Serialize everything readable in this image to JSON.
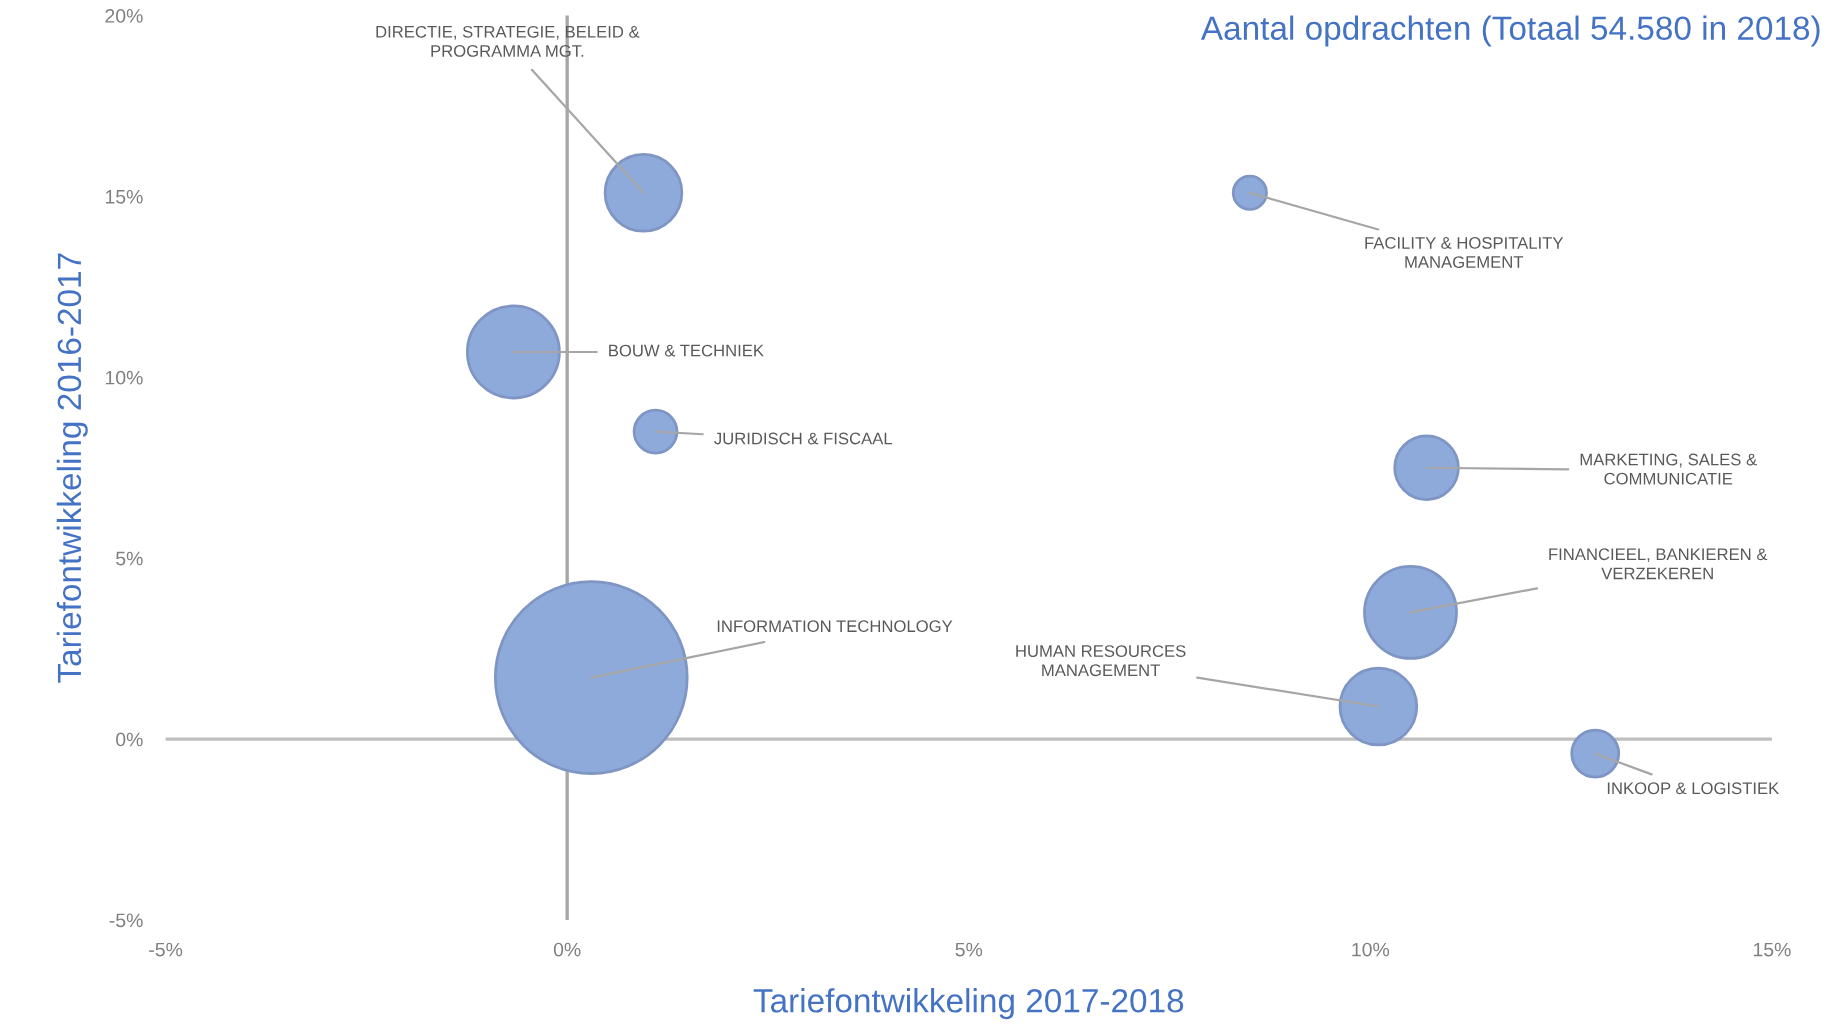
{
  "chart_data": {
    "type": "bubble",
    "title": "Aantal opdrachten (Totaal 54.580 in 2018)",
    "xlabel": "Tariefontwikkeling 2017-2018",
    "ylabel": "Tariefontwikkeling 2016-2017",
    "series": [
      {
        "color": "#8eaadb",
        "x": [
          0.95,
          8.5,
          -0.67,
          1.1,
          10.7,
          0.3,
          10.5,
          10.1,
          12.8
        ],
        "values": [
          15.1,
          15.1,
          10.7,
          8.5,
          7.5,
          1.7,
          3.5,
          0.9,
          -0.4
        ],
        "sizes": [
          0.16,
          0.03,
          0.23,
          0.05,
          0.11,
          1,
          0.23,
          0.16,
          0.06
        ]
      }
    ],
    "annotations": [
      {
        "text": "DIRECTIE, STRATEGIE, BELEID &\nPROGRAMMA MGT.",
        "x": 0.95,
        "y": 15.1
      },
      {
        "text": "FACILITY & HOSPITALITY\nMANAGEMENT",
        "x": 8.5,
        "y": 15.1
      },
      {
        "text": "BOUW & TECHNIEK",
        "x": -0.67,
        "y": 10.7
      },
      {
        "text": "JURIDISCH & FISCAAL",
        "x": 1.1,
        "y": 8.5
      },
      {
        "text": "MARKETING, SALES &\nCOMMUNICATIE",
        "x": 10.7,
        "y": 7.5
      },
      {
        "text": "INFORMATION TECHNOLOGY",
        "x": 0.3,
        "y": 1.7
      },
      {
        "text": "FINANCIEEL, BANKIEREN &\nVERZEKEREN",
        "x": 10.5,
        "y": 3.5
      },
      {
        "text": "HUMAN RESOURCES\nMANAGEMENT",
        "x": 10.1,
        "y": 0.9
      },
      {
        "text": "INKOOP & LOGISTIEK",
        "x": 12.8,
        "y": -0.4
      }
    ],
    "ref_lines": [
      {
        "axis": "x",
        "value": 0,
        "color": "#a6a6a6"
      },
      {
        "axis": "y",
        "value": 0,
        "color": "#bfbfbf"
      }
    ],
    "xlim": [
      -5,
      15
    ],
    "xticks": [
      {
        "value": -5,
        "label": "-5%"
      },
      {
        "value": 0,
        "label": "0%"
      },
      {
        "value": 5,
        "label": "5%"
      },
      {
        "value": 10,
        "label": "10%"
      },
      {
        "value": 15,
        "label": "15%"
      }
    ],
    "ylim": [
      -5,
      20
    ],
    "yticks": [
      {
        "value": -5,
        "label": "-5%"
      },
      {
        "value": 0,
        "label": "0%"
      },
      {
        "value": 5,
        "label": "5%"
      },
      {
        "value": 10,
        "label": "10%"
      },
      {
        "value": 15,
        "label": "15%"
      },
      {
        "value": 20,
        "label": "20%"
      }
    ],
    "grid": false,
    "legend": false
  }
}
